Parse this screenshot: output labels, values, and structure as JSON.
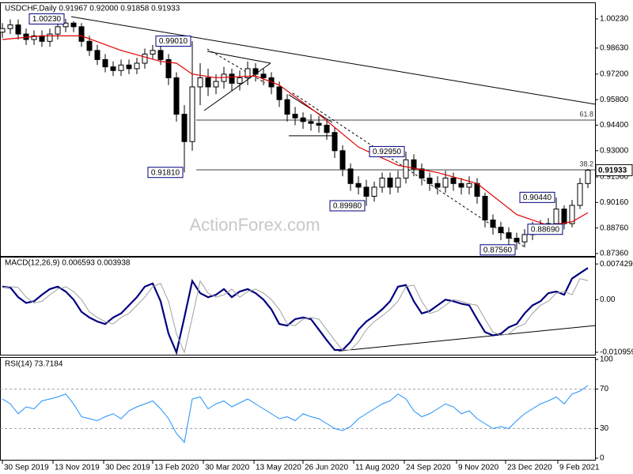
{
  "chart_data": [
    {
      "type": "candlestick",
      "title": "USDCHF,Daily  0.91967 0.92000 0.91858 0.91933",
      "watermark": "ActionForex.com",
      "x": [
        0,
        5,
        10,
        15,
        20,
        25,
        30,
        35,
        40,
        45,
        50,
        55,
        60,
        65,
        70,
        75,
        80,
        85,
        90,
        95,
        100,
        105,
        110,
        115,
        120,
        125,
        130,
        135,
        140,
        145,
        150,
        155,
        160,
        165,
        170,
        175,
        180,
        185,
        190,
        195,
        200,
        205,
        210,
        215,
        220,
        225,
        230,
        235,
        240,
        245,
        250,
        255,
        260,
        265,
        270,
        275,
        280,
        285,
        290,
        295,
        300,
        305,
        310,
        315,
        320,
        325,
        330,
        335,
        340,
        345,
        350,
        355,
        360,
        365,
        370
      ],
      "open": [
        0.995,
        0.997,
        0.999,
        0.994,
        0.991,
        0.993,
        0.99,
        0.994,
        0.998,
        1.0,
        0.998,
        0.99,
        0.985,
        0.98,
        0.976,
        0.974,
        0.977,
        0.975,
        0.978,
        0.983,
        0.985,
        0.98,
        0.97,
        0.95,
        0.935,
        0.965,
        0.97,
        0.965,
        0.968,
        0.972,
        0.967,
        0.97,
        0.975,
        0.972,
        0.97,
        0.965,
        0.958,
        0.95,
        0.948,
        0.946,
        0.945,
        0.944,
        0.94,
        0.93,
        0.92,
        0.912,
        0.91,
        0.905,
        0.91,
        0.915,
        0.91,
        0.915,
        0.925,
        0.92,
        0.915,
        0.912,
        0.91,
        0.915,
        0.912,
        0.91,
        0.912,
        0.905,
        0.892,
        0.888,
        0.885,
        0.882,
        0.88,
        0.884,
        0.888,
        0.888,
        0.89,
        0.898,
        0.89,
        0.9,
        0.912
      ],
      "high": [
        1.0,
        1.002,
        1.002,
        0.997,
        0.996,
        0.996,
        0.997,
        1.001,
        1.0023,
        1.001,
        1.0,
        0.993,
        0.988,
        0.983,
        0.979,
        0.98,
        0.98,
        0.981,
        0.986,
        0.988,
        0.988,
        0.983,
        0.973,
        0.955,
        0.9901,
        0.978,
        0.975,
        0.972,
        0.976,
        0.975,
        0.974,
        0.979,
        0.978,
        0.975,
        0.973,
        0.968,
        0.961,
        0.954,
        0.951,
        0.95,
        0.949,
        0.947,
        0.943,
        0.933,
        0.923,
        0.916,
        0.914,
        0.913,
        0.918,
        0.918,
        0.919,
        0.9295,
        0.928,
        0.923,
        0.918,
        0.916,
        0.919,
        0.918,
        0.915,
        0.916,
        0.915,
        0.907,
        0.895,
        0.891,
        0.888,
        0.885,
        0.887,
        0.891,
        0.892,
        0.893,
        0.9044,
        0.9,
        0.903,
        0.915,
        0.92
      ],
      "low": [
        0.992,
        0.994,
        0.991,
        0.988,
        0.988,
        0.987,
        0.987,
        0.991,
        0.995,
        0.995,
        0.987,
        0.982,
        0.977,
        0.973,
        0.971,
        0.971,
        0.972,
        0.972,
        0.975,
        0.98,
        0.977,
        0.966,
        0.946,
        0.9181,
        0.93,
        0.955,
        0.96,
        0.961,
        0.964,
        0.963,
        0.963,
        0.966,
        0.968,
        0.966,
        0.961,
        0.954,
        0.946,
        0.944,
        0.942,
        0.941,
        0.94,
        0.936,
        0.926,
        0.916,
        0.908,
        0.906,
        0.8998,
        0.902,
        0.907,
        0.906,
        0.907,
        0.912,
        0.916,
        0.911,
        0.908,
        0.906,
        0.907,
        0.908,
        0.906,
        0.906,
        0.901,
        0.888,
        0.884,
        0.881,
        0.878,
        0.8756,
        0.877,
        0.881,
        0.884,
        0.885,
        0.887,
        0.8869,
        0.888,
        0.898,
        0.9095
      ],
      "close": [
        0.997,
        0.999,
        0.994,
        0.991,
        0.993,
        0.99,
        0.994,
        0.998,
        1.0,
        0.998,
        0.99,
        0.985,
        0.98,
        0.976,
        0.974,
        0.977,
        0.975,
        0.978,
        0.983,
        0.985,
        0.98,
        0.97,
        0.95,
        0.935,
        0.965,
        0.97,
        0.965,
        0.968,
        0.972,
        0.967,
        0.97,
        0.975,
        0.972,
        0.97,
        0.965,
        0.958,
        0.95,
        0.948,
        0.946,
        0.945,
        0.944,
        0.94,
        0.93,
        0.92,
        0.912,
        0.91,
        0.905,
        0.91,
        0.915,
        0.91,
        0.915,
        0.925,
        0.92,
        0.915,
        0.912,
        0.91,
        0.915,
        0.912,
        0.91,
        0.912,
        0.905,
        0.892,
        0.888,
        0.885,
        0.882,
        0.88,
        0.884,
        0.888,
        0.888,
        0.89,
        0.898,
        0.89,
        0.9,
        0.912,
        0.9193
      ],
      "color": "#000000",
      "series": [
        {
          "color": "#e00000",
          "x": [
            0,
            25,
            50,
            75,
            100,
            110,
            120,
            135,
            160,
            175,
            200,
            225,
            250,
            275,
            300,
            325,
            345,
            360,
            370
          ],
          "values": [
            0.991,
            0.993,
            0.993,
            0.985,
            0.979,
            0.978,
            0.972,
            0.97,
            0.971,
            0.966,
            0.95,
            0.932,
            0.922,
            0.918,
            0.912,
            0.895,
            0.889,
            0.891,
            0.896
          ]
        }
      ],
      "xlim": [
        -1.5,
        374.5
      ],
      "xticks": [
        {
          "value": 0,
          "label": "30 Sep 2019"
        },
        {
          "value": 32,
          "label": "13 Nov 2019"
        },
        {
          "value": 64,
          "label": "30 Dec 2019"
        },
        {
          "value": 95,
          "label": "13 Feb 2020"
        },
        {
          "value": 127,
          "label": "30 Mar 2020"
        },
        {
          "value": 159,
          "label": "13 May 2020"
        },
        {
          "value": 190,
          "label": "26 Jun 2020"
        },
        {
          "value": 222,
          "label": "11 Aug 2020"
        },
        {
          "value": 254,
          "label": "24 Sep 2020"
        },
        {
          "value": 287,
          "label": "9 Nov 2020"
        },
        {
          "value": 318,
          "label": "23 Dec 2020"
        },
        {
          "value": 351,
          "label": "9 Feb 2021"
        }
      ],
      "ylim": [
        0.8727,
        1.0105
      ],
      "yticks": [
        {
          "value": 1.0023,
          "label": "1.00230"
        },
        {
          "value": 0.9863,
          "label": "0.98630"
        },
        {
          "value": 0.972,
          "label": "0.97200"
        },
        {
          "value": 0.958,
          "label": "0.95800"
        },
        {
          "value": 0.944,
          "label": "0.94400"
        },
        {
          "value": 0.93,
          "label": "0.93000"
        },
        {
          "value": 0.9156,
          "label": "0.91560"
        },
        {
          "value": 0.9016,
          "label": "0.90160"
        },
        {
          "value": 0.8876,
          "label": "0.88760"
        },
        {
          "value": 0.8736,
          "label": "0.87360"
        }
      ],
      "grid": false,
      "last_price": 0.91933,
      "levels": [
        {
          "value": 0.9468,
          "label": "61.8",
          "start": 122.5
        },
        {
          "value": 0.9195,
          "label": "38.2",
          "start": 122.5
        }
      ],
      "trendlines": [
        {
          "x": [
            43.5,
            374.5
          ],
          "y": [
            1.0035,
            0.9555
          ],
          "dashed": false
        },
        {
          "x": [
            127.5,
            169.5
          ],
          "y": [
            0.952,
            0.978
          ],
          "dashed": false
        },
        {
          "x": [
            129.5,
            169.5
          ],
          "y": [
            0.9845,
            0.978
          ],
          "dashed": false
        },
        {
          "x": [
            129.5,
            166
          ],
          "y": [
            0.9858,
            0.9672
          ],
          "dashed": true
        },
        {
          "x": [
            181,
            208.5
          ],
          "y": [
            0.9382,
            0.9382
          ],
          "dashed": false
        },
        {
          "x": [
            181,
            208.5
          ],
          "y": [
            0.9607,
            0.9455
          ],
          "dashed": false
        },
        {
          "x": [
            183.5,
            329.5
          ],
          "y": [
            0.9616,
            0.8775
          ],
          "dashed": true
        }
      ],
      "annotations": [
        {
          "x": 40,
          "y": 1.0023,
          "label": "1.00230"
        },
        {
          "x": 120,
          "y": 0.9901,
          "label": "0.99010"
        },
        {
          "x": 115,
          "y": 0.9181,
          "label": "0.91810"
        },
        {
          "x": 230,
          "y": 0.8998,
          "label": "0.89980"
        },
        {
          "x": 255,
          "y": 0.9295,
          "label": "0.92950"
        },
        {
          "x": 325,
          "y": 0.8756,
          "label": "0.87560"
        },
        {
          "x": 350,
          "y": 0.9044,
          "label": "0.90440"
        },
        {
          "x": 355,
          "y": 0.8869,
          "label": "0.88690"
        }
      ]
    },
    {
      "type": "line",
      "title": "MACD(12,26,9) 0.006593 0.003938",
      "x": [
        0,
        5,
        10,
        15,
        20,
        25,
        30,
        35,
        40,
        45,
        50,
        55,
        60,
        65,
        70,
        75,
        80,
        85,
        90,
        95,
        100,
        105,
        110,
        115,
        120,
        125,
        130,
        135,
        140,
        145,
        150,
        155,
        160,
        165,
        170,
        175,
        180,
        185,
        190,
        195,
        200,
        205,
        210,
        215,
        220,
        225,
        230,
        235,
        240,
        245,
        250,
        255,
        260,
        265,
        270,
        275,
        280,
        285,
        290,
        295,
        300,
        305,
        310,
        315,
        320,
        325,
        330,
        335,
        340,
        345,
        350,
        355,
        360,
        365,
        370
      ],
      "series": [
        {
          "color": "#000080",
          "values": [
            0.0027,
            0.00254,
            0.00051,
            -0.00068,
            -0.00034,
            0.00101,
            0.0022,
            0.0027,
            0.00169,
            0,
            -0.00254,
            -0.00372,
            -0.00456,
            -0.00507,
            -0.00372,
            -0.00287,
            -0.00118,
            0.00051,
            0.0027,
            0.00338,
            -0.00034,
            -0.0071,
            -0.011,
            -0.00372,
            0.00389,
            0.00135,
            0.00051,
            0.00101,
            0.0022,
            0.00051,
            0.00169,
            0.0022,
            0.00135,
            0,
            -0.00203,
            -0.00507,
            -0.00541,
            -0.00406,
            -0.00372,
            -0.00406,
            -0.00625,
            -0.00845,
            -0.01048,
            -0.01048,
            -0.00879,
            -0.00625,
            -0.00456,
            -0.00338,
            -0.00203,
            -0.00034,
            0.0027,
            0.00304,
            -0.00034,
            -0.00287,
            -0.00237,
            -0.00118,
            0,
            -0.00034,
            -0.00085,
            -0.00118,
            -0.00406,
            -0.00676,
            -0.00744,
            -0.0071,
            -0.00575,
            -0.00507,
            -0.00287,
            -0.00118,
            -0.00034,
            0.00135,
            0.00169,
            0.00101,
            0.0044,
            0.0055,
            0.006593
          ]
        },
        {
          "color": "#a0a0a0",
          "values": [
            0.0025,
            0.0027,
            0.00254,
            0.00051,
            -0.00068,
            -0.00034,
            0.00101,
            0.0022,
            0.0027,
            0.00169,
            0,
            -0.00254,
            -0.00372,
            -0.00456,
            -0.00507,
            -0.00372,
            -0.00287,
            -0.00118,
            0.00051,
            0.0027,
            0.00338,
            -0.00034,
            -0.0071,
            -0.011,
            -0.00372,
            0.00389,
            0.00135,
            0.00051,
            0.00101,
            0.0022,
            0.00051,
            0.00169,
            0.0022,
            0.00135,
            0,
            -0.00203,
            -0.00507,
            -0.00541,
            -0.00406,
            -0.00372,
            -0.00406,
            -0.00625,
            -0.00845,
            -0.01048,
            -0.01048,
            -0.00879,
            -0.00625,
            -0.00456,
            -0.00338,
            -0.00203,
            -0.00034,
            0.0027,
            0.00304,
            -0.00034,
            -0.00287,
            -0.00237,
            -0.00118,
            0,
            -0.00034,
            -0.00085,
            -0.00118,
            -0.00406,
            -0.00676,
            -0.00744,
            -0.0071,
            -0.00575,
            -0.00507,
            -0.00287,
            -0.00118,
            -0.00034,
            0.00135,
            0.00169,
            0.00101,
            0.0044,
            0.003938
          ]
        }
      ],
      "xlim": [
        -1.5,
        374.5
      ],
      "ylim": [
        -0.0113,
        0.0086
      ],
      "yticks": [
        0.007429,
        {
          "value": 0,
          "label": "0.00"
        },
        -0.010959
      ],
      "grid": false,
      "trendlines": [
        {
          "x": [
            212.5,
            374.5
          ],
          "y": [
            -0.0107,
            -0.0054
          ],
          "dashed": false
        }
      ]
    },
    {
      "type": "line",
      "title": "RSI(14) 73.7184",
      "x": [
        0,
        5,
        10,
        15,
        20,
        25,
        30,
        35,
        40,
        45,
        50,
        55,
        60,
        65,
        70,
        75,
        80,
        85,
        90,
        95,
        100,
        105,
        110,
        115,
        120,
        125,
        130,
        135,
        140,
        145,
        150,
        155,
        160,
        165,
        170,
        175,
        180,
        185,
        190,
        195,
        200,
        205,
        210,
        215,
        220,
        225,
        230,
        235,
        240,
        245,
        250,
        255,
        260,
        265,
        270,
        275,
        280,
        285,
        290,
        295,
        300,
        305,
        310,
        315,
        320,
        325,
        330,
        335,
        340,
        345,
        350,
        355,
        360,
        365,
        370
      ],
      "series": [
        {
          "color": "#1e90ff",
          "values": [
            60,
            55,
            45,
            52,
            50,
            58,
            60,
            62,
            65,
            55,
            42,
            40,
            38,
            42,
            45,
            40,
            48,
            52,
            55,
            58,
            50,
            40,
            25,
            16,
            60,
            62,
            50,
            55,
            58,
            52,
            56,
            60,
            55,
            50,
            45,
            40,
            42,
            38,
            45,
            42,
            40,
            35,
            30,
            28,
            32,
            40,
            45,
            50,
            55,
            58,
            65,
            60,
            48,
            42,
            45,
            50,
            55,
            52,
            45,
            48,
            40,
            35,
            30,
            32,
            30,
            38,
            45,
            50,
            55,
            58,
            62,
            55,
            65,
            68,
            73.7184
          ]
        }
      ],
      "xlim": [
        -1.5,
        374.5
      ],
      "ylim": [
        0,
        100
      ],
      "yticks": [
        100,
        70,
        30,
        0
      ],
      "levels": [
        70,
        30
      ],
      "grid": false
    }
  ]
}
